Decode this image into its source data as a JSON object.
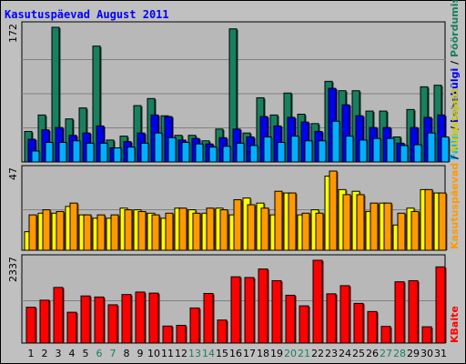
{
  "title": "Kasutuspäevad August 2011",
  "chart_data": [
    {
      "type": "bar",
      "panel": "top",
      "ymax_label": "172",
      "categories": [
        "1",
        "2",
        "3",
        "4",
        "5",
        "6",
        "7",
        "8",
        "9",
        "10",
        "11",
        "12",
        "13",
        "14",
        "15",
        "16",
        "17",
        "18",
        "19",
        "20",
        "21",
        "22",
        "23",
        "24",
        "25",
        "26",
        "27",
        "28",
        "29",
        "30",
        "31"
      ],
      "weekend_days": [
        "6",
        "7",
        "13",
        "14",
        "20",
        "21",
        "27",
        "28"
      ],
      "series": [
        {
          "name": "Pöördumisi",
          "color": "#187f5f",
          "values": [
            39,
            60,
            172,
            55,
            69,
            148,
            28,
            33,
            72,
            81,
            59,
            34,
            34,
            27,
            42,
            170,
            37,
            82,
            60,
            88,
            61,
            49,
            103,
            91,
            91,
            65,
            65,
            32,
            67,
            96,
            98
          ]
        },
        {
          "name": "Lehekülgi",
          "color": "#0000ee",
          "values": [
            29,
            41,
            44,
            34,
            37,
            46,
            18,
            26,
            37,
            60,
            58,
            28,
            30,
            23,
            31,
            42,
            32,
            58,
            46,
            57,
            51,
            39,
            94,
            73,
            59,
            44,
            44,
            24,
            44,
            57,
            60
          ]
        },
        {
          "name": "Faile",
          "color": "#00b0ff",
          "values": [
            14,
            25,
            25,
            27,
            24,
            24,
            18,
            19,
            24,
            37,
            31,
            25,
            23,
            19,
            20,
            24,
            21,
            32,
            25,
            33,
            27,
            27,
            52,
            33,
            28,
            30,
            30,
            21,
            22,
            37,
            32
          ]
        }
      ],
      "legend_text": [
        "Pöördumisi",
        "Lehekülgi",
        "Faile"
      ]
    },
    {
      "type": "bar",
      "panel": "middle",
      "ymax_label": "47",
      "series": [
        {
          "name": "Külastajaid",
          "color": "#ffff00",
          "values": [
            11,
            22,
            22,
            26,
            21,
            19,
            19,
            25,
            24,
            22,
            19,
            25,
            24,
            22,
            25,
            21,
            31,
            28,
            21,
            34,
            21,
            24,
            44,
            36,
            35,
            23,
            28,
            15,
            25,
            36,
            34
          ]
        },
        {
          "name": "Kasutuspäevad",
          "color": "#ff9900",
          "values": [
            21,
            24,
            23,
            28,
            21,
            21,
            21,
            24,
            23,
            21,
            22,
            25,
            22,
            25,
            24,
            30,
            27,
            25,
            35,
            34,
            22,
            22,
            47,
            33,
            33,
            28,
            28,
            22,
            23,
            36,
            34
          ]
        }
      ],
      "legend_text": [
        "Kasutuspäevad",
        "Külastajaid"
      ]
    },
    {
      "type": "bar",
      "panel": "bottom",
      "ymax_label": "2337",
      "series": [
        {
          "name": "KBaite",
          "color": "#ff0000",
          "values": [
            1010,
            1210,
            1570,
            870,
            1330,
            1300,
            1080,
            1370,
            1440,
            1410,
            480,
            500,
            990,
            1400,
            650,
            1870,
            1850,
            2090,
            1760,
            1350,
            1050,
            2337,
            1390,
            1620,
            1120,
            890,
            470,
            1730,
            1760,
            460,
            2150
          ]
        }
      ],
      "legend_text": [
        "KBaite"
      ]
    }
  ]
}
